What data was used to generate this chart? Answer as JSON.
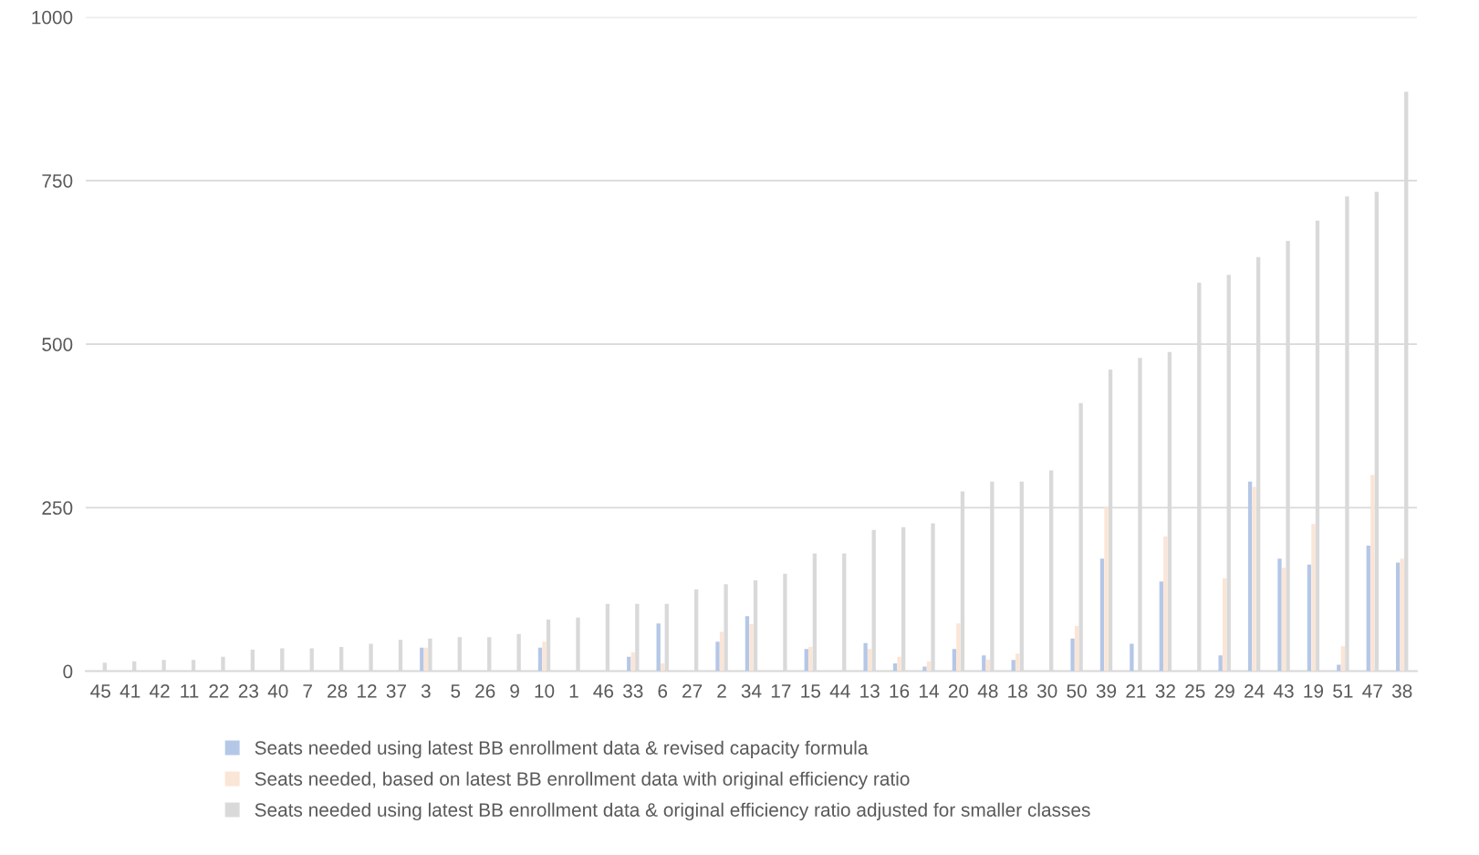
{
  "chart_data": {
    "type": "bar",
    "categories": [
      "45",
      "41",
      "42",
      "11",
      "22",
      "23",
      "40",
      "7",
      "28",
      "12",
      "37",
      "3",
      "5",
      "26",
      "9",
      "10",
      "1",
      "46",
      "33",
      "6",
      "27",
      "2",
      "34",
      "17",
      "15",
      "44",
      "13",
      "16",
      "14",
      "20",
      "48",
      "18",
      "30",
      "50",
      "39",
      "21",
      "32",
      "25",
      "29",
      "24",
      "43",
      "19",
      "51",
      "47",
      "38"
    ],
    "series": [
      {
        "name": "Seats needed using latest BB enrollment data & revised capacity formula",
        "color": "#b4c7e7",
        "values": [
          null,
          null,
          null,
          null,
          null,
          null,
          null,
          null,
          null,
          null,
          null,
          36,
          null,
          null,
          null,
          36,
          null,
          null,
          22,
          73,
          null,
          45,
          84,
          null,
          34,
          null,
          43,
          12,
          7,
          34,
          24,
          17,
          null,
          50,
          172,
          42,
          137,
          null,
          24,
          290,
          172,
          163,
          10,
          192,
          166
        ]
      },
      {
        "name": "Seats needed, based on latest BB enrollment data with original efficiency ratio",
        "color": "#fbe5d6",
        "values": [
          null,
          null,
          null,
          null,
          null,
          null,
          null,
          null,
          null,
          null,
          null,
          36,
          null,
          null,
          null,
          45,
          null,
          null,
          29,
          12,
          null,
          60,
          72,
          null,
          37,
          null,
          34,
          22,
          15,
          73,
          18,
          27,
          null,
          69,
          250,
          null,
          206,
          null,
          142,
          282,
          158,
          225,
          38,
          300,
          172
        ]
      },
      {
        "name": "Seats needed using latest BB enrollment data & original efficiency ratio adjusted for smaller classes",
        "color": "#d9d9d9",
        "values": [
          13,
          15,
          17,
          17,
          22,
          33,
          35,
          35,
          37,
          42,
          48,
          50,
          52,
          52,
          57,
          79,
          82,
          103,
          103,
          103,
          125,
          133,
          139,
          149,
          180,
          180,
          216,
          220,
          226,
          275,
          290,
          290,
          307,
          410,
          461,
          479,
          488,
          594,
          606,
          633,
          658,
          689,
          726,
          733,
          886
        ]
      }
    ],
    "ylim": [
      0,
      1000
    ],
    "yticks": [
      0,
      250,
      500,
      750,
      1000
    ],
    "grid": "y",
    "legend": "bottom"
  }
}
